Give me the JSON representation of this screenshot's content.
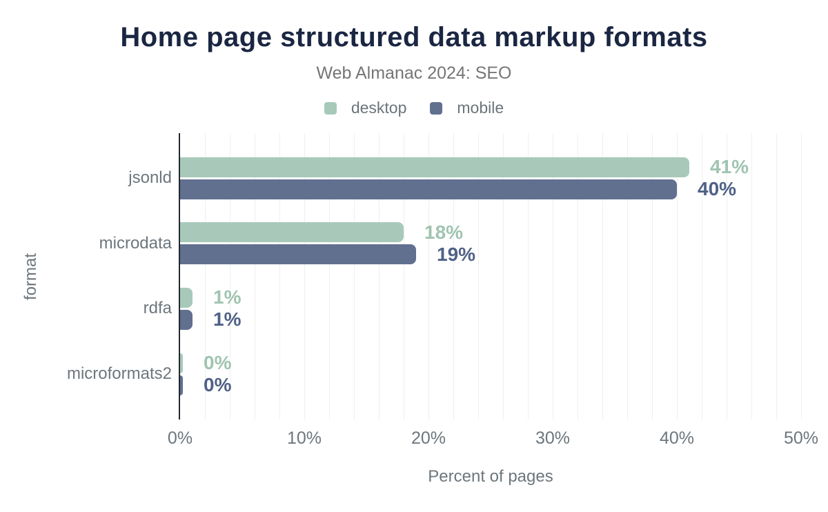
{
  "colors": {
    "title": "#1a2642",
    "subtitle": "#757575",
    "legend_label": "#6b7478",
    "axis_line": "#23282f",
    "gridline": "#edefef",
    "tick_label": "#6d767c",
    "category_label": "#6d767c",
    "axis_title": "#6d767c",
    "background": "#ffffff"
  },
  "chart_data": {
    "type": "bar",
    "orientation": "horizontal",
    "title": "Home page structured data markup formats",
    "subtitle": "Web Almanac 2024: SEO",
    "xlabel": "Percent of pages",
    "ylabel": "format",
    "categories": [
      "jsonld",
      "microdata",
      "rdfa",
      "microformats2"
    ],
    "series": [
      {
        "name": "desktop",
        "color": "#a8c9ba",
        "label_color": "#a0c4b1",
        "values": [
          41,
          18,
          1,
          0
        ],
        "value_labels": [
          "41%",
          "18%",
          "1%",
          "0%"
        ]
      },
      {
        "name": "mobile",
        "color": "#61708e",
        "label_color": "#4f6187",
        "values": [
          40,
          19,
          1,
          0
        ],
        "value_labels": [
          "40%",
          "19%",
          "1%",
          "0%"
        ]
      }
    ],
    "xlim": [
      0,
      50
    ],
    "x_ticks": [
      {
        "value": 0,
        "label": "0%"
      },
      {
        "value": 10,
        "label": "10%"
      },
      {
        "value": 20,
        "label": "20%"
      },
      {
        "value": 30,
        "label": "30%"
      },
      {
        "value": 40,
        "label": "40%"
      },
      {
        "value": 50,
        "label": "50%"
      },
      {
        "value": 2,
        "label": ""
      }
    ],
    "minor_gridline_step": 2,
    "grid": true,
    "legend_position": "top"
  }
}
